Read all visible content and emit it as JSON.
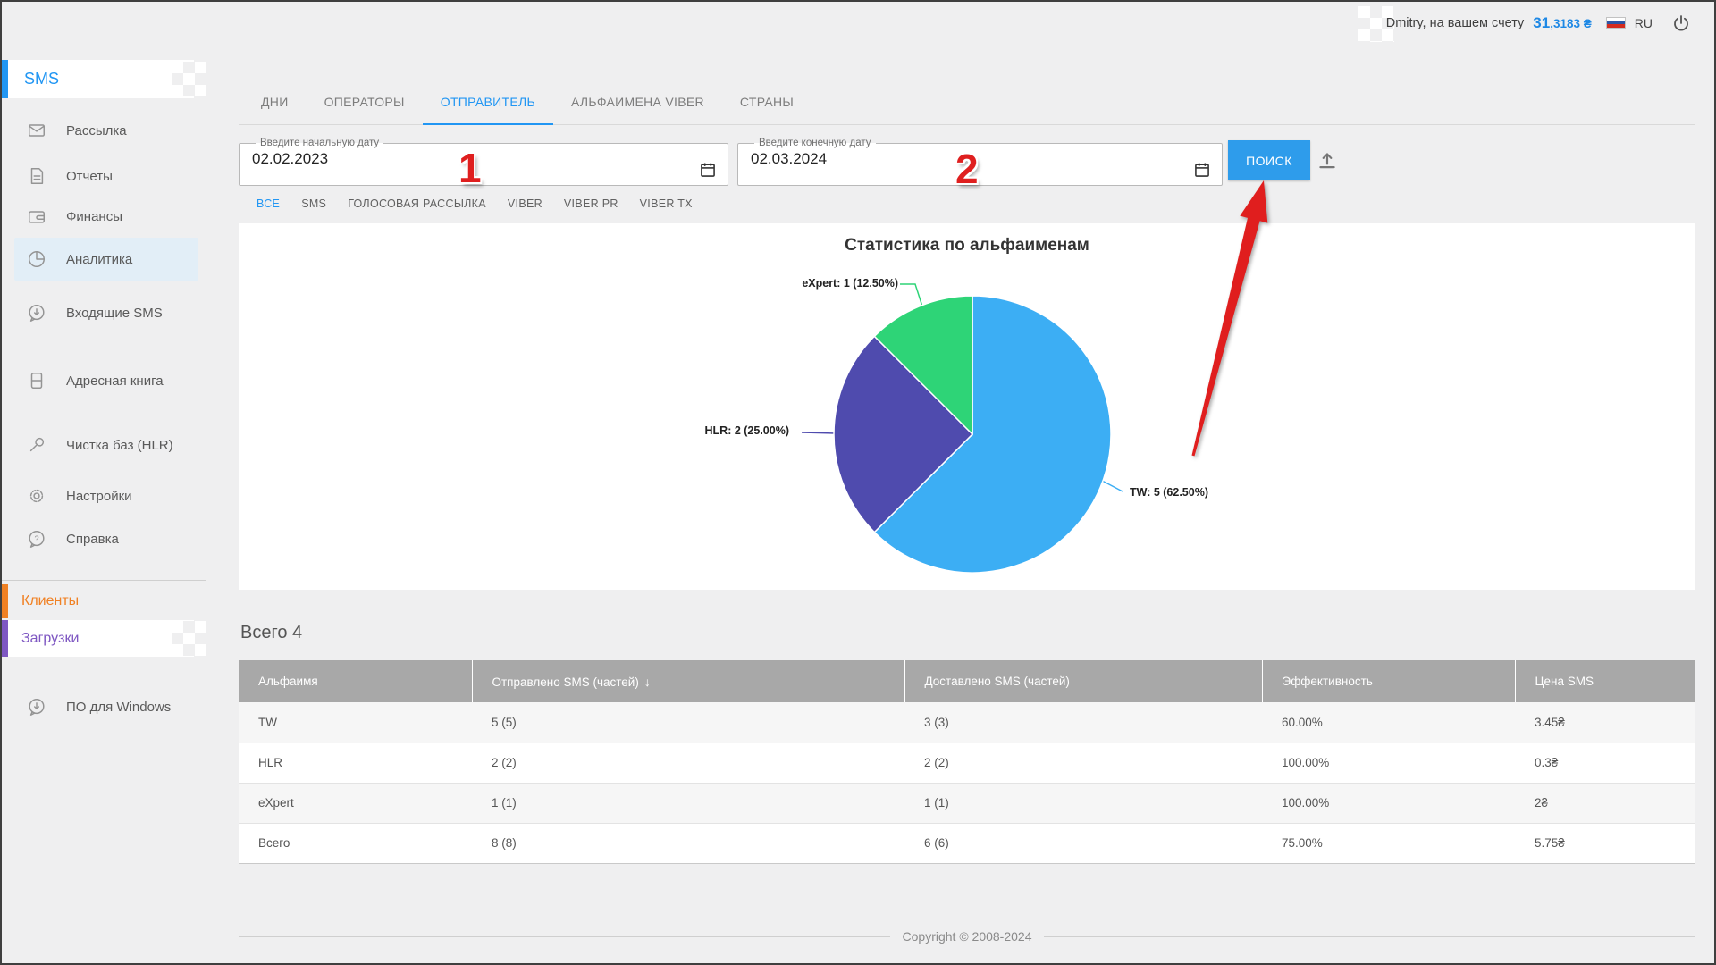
{
  "header": {
    "greeting": "Dmitry, на вашем счету",
    "balance_main": "31",
    "balance_fraction": ",3183 ₴",
    "language": "RU"
  },
  "sidebar": {
    "brand": "SMS",
    "items": [
      {
        "label": "Рассылка",
        "icon": "envelope-icon"
      },
      {
        "label": "Отчеты",
        "icon": "report-icon"
      },
      {
        "label": "Финансы",
        "icon": "wallet-icon"
      },
      {
        "label": "Аналитика",
        "icon": "pie-icon",
        "active": true
      },
      {
        "label": "Входящие SMS",
        "icon": "incoming-sms-icon"
      },
      {
        "label": "Адресная книга",
        "icon": "address-book-icon"
      },
      {
        "label": "Чистка баз (HLR)",
        "icon": "wrench-icon"
      },
      {
        "label": "Настройки",
        "icon": "gear-icon"
      },
      {
        "label": "Справка",
        "icon": "help-icon"
      }
    ],
    "clients_label": "Клиенты",
    "downloads_label": "Загрузки",
    "software_label": "ПО для Windows"
  },
  "tabs": [
    {
      "label": "ДНИ"
    },
    {
      "label": "ОПЕРАТОРЫ"
    },
    {
      "label": "ОТПРАВИТЕЛЬ",
      "active": true
    },
    {
      "label": "АЛЬФАИМЕНА VIBER"
    },
    {
      "label": "СТРАНЫ"
    }
  ],
  "search_form": {
    "start_date_label": "Введите начальную дату",
    "start_date_value": "02.02.2023",
    "end_date_label": "Введите конечную дату",
    "end_date_value": "02.03.2024",
    "search_button": "ПОИСК",
    "annotation_1": "1",
    "annotation_2": "2"
  },
  "channel_filters": [
    {
      "label": "ВСЕ",
      "active": true
    },
    {
      "label": "SMS"
    },
    {
      "label": "ГОЛОСОВАЯ РАССЫЛКА"
    },
    {
      "label": "VIBER"
    },
    {
      "label": "VIBER PR"
    },
    {
      "label": "VIBER TX"
    }
  ],
  "chart_data": {
    "type": "pie",
    "title": "Статистика по альфаименам",
    "start_angle_deg": 0,
    "direction": "clockwise",
    "legend_position": "callout-labels",
    "segments": [
      {
        "name": "TW",
        "value": 5,
        "percent": 62.5,
        "label": "TW: 5 (62.50%)",
        "color": "#3caef4"
      },
      {
        "name": "HLR",
        "value": 2,
        "percent": 25.0,
        "label": "HLR: 2 (25.00%)",
        "color": "#4f4bae"
      },
      {
        "name": "eXpert",
        "value": 1,
        "percent": 12.5,
        "label": "eXpert: 1 (12.50%)",
        "color": "#2ed477"
      }
    ]
  },
  "summary": {
    "total": "Всего 4"
  },
  "table": {
    "headers": [
      "Альфаимя",
      "Отправлено SMS (частей)",
      "Доставлено SMS (частей)",
      "Эффективность",
      "Цена SMS"
    ],
    "sort_icon": "↓",
    "rows": [
      [
        "TW",
        "5 (5)",
        "3 (3)",
        "60.00%",
        "3.45₴"
      ],
      [
        "HLR",
        "2 (2)",
        "2 (2)",
        "100.00%",
        "0.3₴"
      ],
      [
        "eXpert",
        "1 (1)",
        "1 (1)",
        "100.00%",
        "2₴"
      ],
      [
        "Всего",
        "8 (8)",
        "6 (6)",
        "75.00%",
        "5.75₴"
      ]
    ]
  },
  "footer": {
    "copyright": "Copyright © 2008-2024"
  },
  "colors": {
    "accent_blue": "#2196f3",
    "arrow_red": "#e01e1e",
    "table_header_bg": "#a8a8a8",
    "clients_orange": "#f08124",
    "downloads_purple": "#7e57c2"
  }
}
